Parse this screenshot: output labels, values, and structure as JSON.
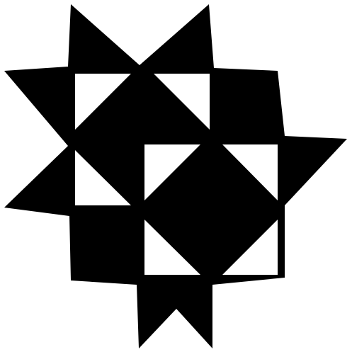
{
  "graphic": {
    "name": "star-quilt-block-icon",
    "fill_color": "#000000",
    "background_color": "#ffffff"
  }
}
